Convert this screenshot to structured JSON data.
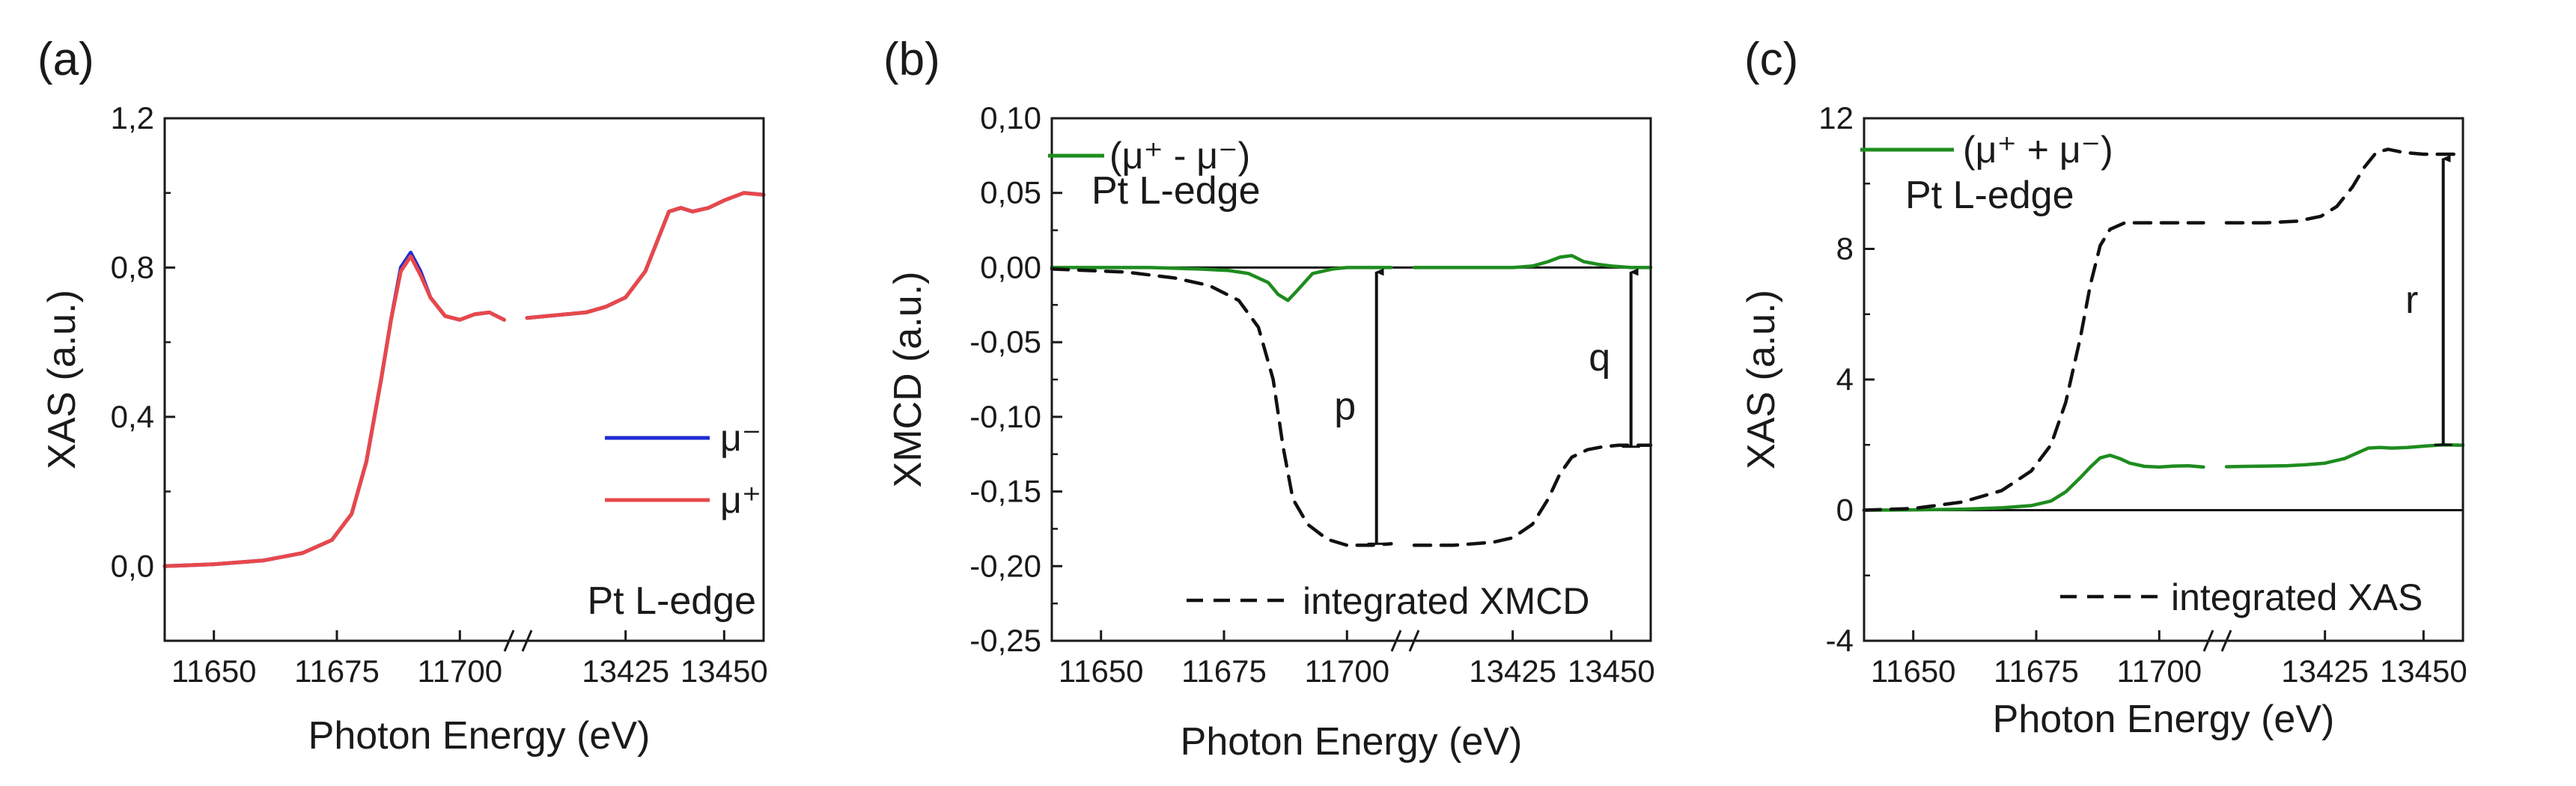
{
  "colors": {
    "mu_minus": "#1f2bd6",
    "mu_plus": "#e8484a",
    "green": "#1e8c1e",
    "black": "#111111"
  },
  "chart_data": [
    {
      "type": "line",
      "panel_label": "(a)",
      "xlabel": "Photon Energy (eV)",
      "ylabel": "XAS (a.u.)",
      "ylim": [
        -0.2,
        1.2
      ],
      "yticks": [
        0.0,
        0.4,
        0.8,
        1.2
      ],
      "ytick_labels": [
        "0,0",
        "0,4",
        "0,8",
        "1,2"
      ],
      "xaxis_segments": [
        {
          "range": [
            11640,
            11710
          ],
          "ticks": [
            11650,
            11675,
            11700
          ],
          "tick_labels": [
            "11650",
            "11675",
            "11700"
          ]
        },
        {
          "range": [
            13400,
            13460
          ],
          "ticks": [
            13425,
            13450
          ],
          "tick_labels": [
            "13425",
            "13450"
          ]
        }
      ],
      "annotation": "Pt L-edge",
      "legend_position": "lower-right",
      "series": [
        {
          "name": "μ⁻",
          "color": "#1f2bd6",
          "segment1": {
            "x": [
              11640,
              11650,
              11660,
              11668,
              11674,
              11678,
              11681,
              11684,
              11686,
              11688,
              11690,
              11692,
              11694,
              11697,
              11700,
              11703,
              11706,
              11709
            ],
            "y": [
              0.0,
              0.005,
              0.015,
              0.035,
              0.07,
              0.14,
              0.28,
              0.5,
              0.66,
              0.8,
              0.84,
              0.79,
              0.72,
              0.67,
              0.66,
              0.675,
              0.68,
              0.66
            ]
          },
          "segment2": {
            "x": [
              13400,
              13405,
              13410,
              13415,
              13420,
              13425,
              13430,
              13433,
              13436,
              13439,
              13442,
              13446,
              13450,
              13455,
              13460
            ],
            "y": [
              0.665,
              0.67,
              0.675,
              0.68,
              0.695,
              0.72,
              0.79,
              0.87,
              0.95,
              0.96,
              0.95,
              0.96,
              0.98,
              1.0,
              0.995
            ]
          }
        },
        {
          "name": "μ⁺",
          "color": "#e8484a",
          "segment1": {
            "x": [
              11640,
              11650,
              11660,
              11668,
              11674,
              11678,
              11681,
              11684,
              11686,
              11688,
              11690,
              11692,
              11694,
              11697,
              11700,
              11703,
              11706,
              11709
            ],
            "y": [
              0.0,
              0.005,
              0.015,
              0.035,
              0.07,
              0.14,
              0.28,
              0.5,
              0.66,
              0.79,
              0.83,
              0.78,
              0.72,
              0.67,
              0.66,
              0.675,
              0.68,
              0.66
            ]
          },
          "segment2": {
            "x": [
              13400,
              13405,
              13410,
              13415,
              13420,
              13425,
              13430,
              13433,
              13436,
              13439,
              13442,
              13446,
              13450,
              13455,
              13460
            ],
            "y": [
              0.665,
              0.67,
              0.675,
              0.68,
              0.695,
              0.72,
              0.79,
              0.87,
              0.95,
              0.96,
              0.95,
              0.96,
              0.98,
              1.0,
              0.995
            ]
          }
        }
      ]
    },
    {
      "type": "line",
      "panel_label": "(b)",
      "xlabel": "Photon Energy (eV)",
      "ylabel": "XMCD (a.u.)",
      "ylim": [
        -0.25,
        0.1
      ],
      "yticks": [
        -0.25,
        -0.2,
        -0.15,
        -0.1,
        -0.05,
        0.0,
        0.05,
        0.1
      ],
      "ytick_labels": [
        "-0,25",
        "-0,20",
        "-0,15",
        "-0,10",
        "-0,05",
        "0,00",
        "0,05",
        "0,10"
      ],
      "xaxis_segments": [
        {
          "range": [
            11640,
            11710
          ],
          "ticks": [
            11650,
            11675,
            11700
          ],
          "tick_labels": [
            "11650",
            "11675",
            "11700"
          ]
        },
        {
          "range": [
            13400,
            13460
          ],
          "ticks": [
            13425,
            13450
          ],
          "tick_labels": [
            "13425",
            "13450"
          ]
        }
      ],
      "annotation": "Pt L-edge",
      "arrow_labels": [
        "p",
        "q"
      ],
      "arrows": [
        {
          "label": "p",
          "x": 11706,
          "y_from": -0.185,
          "y_to": 0.0
        },
        {
          "label": "q",
          "x": 13455,
          "y_from": -0.12,
          "y_to": 0.0
        }
      ],
      "series": [
        {
          "name": "(μ⁺ - μ⁻)",
          "color": "#1e8c1e",
          "style": "solid",
          "legend_position": "top-left",
          "segment1": {
            "x": [
              11640,
              11660,
              11670,
              11676,
              11680,
              11684,
              11686,
              11688,
              11690,
              11693,
              11697,
              11700,
              11705,
              11709
            ],
            "y": [
              0.0,
              0.0,
              -0.001,
              -0.002,
              -0.004,
              -0.01,
              -0.018,
              -0.022,
              -0.015,
              -0.004,
              -0.001,
              0.0,
              0.0,
              0.0
            ]
          },
          "segment2": {
            "x": [
              13400,
              13415,
              13425,
              13430,
              13434,
              13437,
              13440,
              13443,
              13447,
              13450,
              13455,
              13460
            ],
            "y": [
              0.0,
              0.0,
              0.0,
              0.001,
              0.004,
              0.007,
              0.008,
              0.004,
              0.002,
              0.001,
              0.0,
              0.0
            ]
          }
        },
        {
          "name": "integrated XMCD",
          "color": "#111111",
          "style": "dashed",
          "legend_position": "bottom-right",
          "segment1": {
            "x": [
              11640,
              11655,
              11665,
              11672,
              11678,
              11682,
              11685,
              11687,
              11689,
              11692,
              11696,
              11700,
              11705,
              11709
            ],
            "y": [
              -0.001,
              -0.003,
              -0.007,
              -0.012,
              -0.022,
              -0.04,
              -0.075,
              -0.12,
              -0.155,
              -0.172,
              -0.182,
              -0.186,
              -0.186,
              -0.185
            ]
          },
          "segment2": {
            "x": [
              13400,
              13410,
              13420,
              13425,
              13430,
              13434,
              13437,
              13440,
              13444,
              13448,
              13452,
              13456,
              13460
            ],
            "y": [
              -0.186,
              -0.186,
              -0.184,
              -0.181,
              -0.172,
              -0.155,
              -0.138,
              -0.127,
              -0.122,
              -0.12,
              -0.119,
              -0.119,
              -0.119
            ]
          }
        }
      ]
    },
    {
      "type": "line",
      "panel_label": "(c)",
      "xlabel": "Photon Energy (eV)",
      "ylabel": "XAS (a.u.)",
      "ylim": [
        -4,
        12
      ],
      "yticks": [
        -4,
        0,
        4,
        8,
        12
      ],
      "ytick_labels": [
        "-4",
        "0",
        "4",
        "8",
        "12"
      ],
      "xaxis_segments": [
        {
          "range": [
            11640,
            11710
          ],
          "ticks": [
            11650,
            11675,
            11700
          ],
          "tick_labels": [
            "11650",
            "11675",
            "11700"
          ]
        },
        {
          "range": [
            13400,
            13460
          ],
          "ticks": [
            13425,
            13450
          ],
          "tick_labels": [
            "13425",
            "13450"
          ]
        }
      ],
      "annotation": "Pt L-edge",
      "arrow_labels": [
        "r"
      ],
      "arrows": [
        {
          "label": "r",
          "x": 13455,
          "y_from": 2.0,
          "y_to": 10.9
        }
      ],
      "series": [
        {
          "name": "(μ⁺ + μ⁻)",
          "color": "#1e8c1e",
          "style": "solid",
          "legend_position": "top-left",
          "segment1": {
            "x": [
              11640,
              11650,
              11660,
              11668,
              11674,
              11678,
              11681,
              11684,
              11686,
              11688,
              11690,
              11692,
              11694,
              11697,
              11700,
              11703,
              11706,
              11709
            ],
            "y": [
              0.0,
              0.01,
              0.03,
              0.07,
              0.14,
              0.28,
              0.56,
              1.0,
              1.32,
              1.6,
              1.68,
              1.58,
              1.44,
              1.34,
              1.32,
              1.35,
              1.36,
              1.32
            ]
          },
          "segment2": {
            "x": [
              13400,
              13405,
              13410,
              13415,
              13420,
              13425,
              13430,
              13433,
              13436,
              13439,
              13442,
              13446,
              13450,
              13455,
              13460
            ],
            "y": [
              1.33,
              1.34,
              1.35,
              1.36,
              1.39,
              1.44,
              1.58,
              1.74,
              1.9,
              1.92,
              1.9,
              1.92,
              1.96,
              2.0,
              1.99
            ]
          }
        },
        {
          "name": "integrated XAS",
          "color": "#111111",
          "style": "dashed",
          "legend_position": "bottom-right",
          "segment1": {
            "x": [
              11640,
              11650,
              11660,
              11668,
              11674,
              11678,
              11681,
              11684,
              11686,
              11688,
              11690,
              11693,
              11697,
              11700,
              11705,
              11709
            ],
            "y": [
              0.0,
              0.05,
              0.25,
              0.6,
              1.2,
              2.0,
              3.3,
              5.3,
              6.9,
              8.1,
              8.6,
              8.8,
              8.8,
              8.8,
              8.8,
              8.8
            ]
          },
          "segment2": {
            "x": [
              13400,
              13410,
              13418,
              13424,
              13428,
              13432,
              13435,
              13438,
              13441,
              13445,
              13450,
              13455,
              13460
            ],
            "y": [
              8.8,
              8.8,
              8.85,
              9.0,
              9.3,
              9.9,
              10.5,
              10.95,
              11.05,
              10.95,
              10.9,
              10.9,
              10.9
            ]
          }
        }
      ]
    }
  ]
}
